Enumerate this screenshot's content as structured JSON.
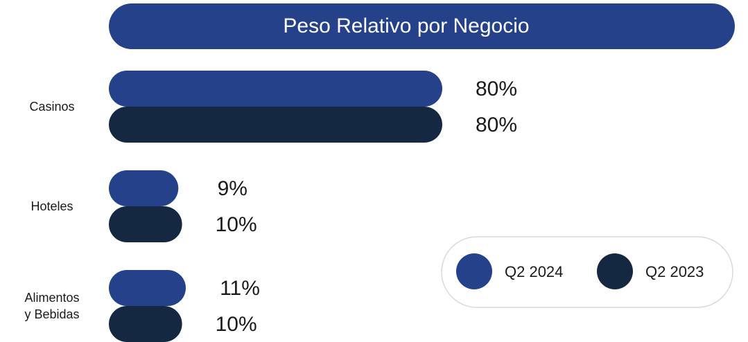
{
  "chart_data": {
    "type": "bar",
    "orientation": "horizontal",
    "title": "Peso Relativo por Negocio",
    "categories": [
      "Casinos",
      "Hoteles",
      "Alimentos\ny Bebidas"
    ],
    "series": [
      {
        "name": "Q2 2024",
        "color": "#25418a",
        "values": [
          80,
          9,
          11
        ],
        "value_labels": [
          "80%",
          "9%",
          "11%"
        ]
      },
      {
        "name": "Q2 2023",
        "color": "#152842",
        "values": [
          80,
          10,
          10
        ],
        "value_labels": [
          "80%",
          "10%",
          "10%"
        ]
      }
    ],
    "legend": "lower right"
  }
}
